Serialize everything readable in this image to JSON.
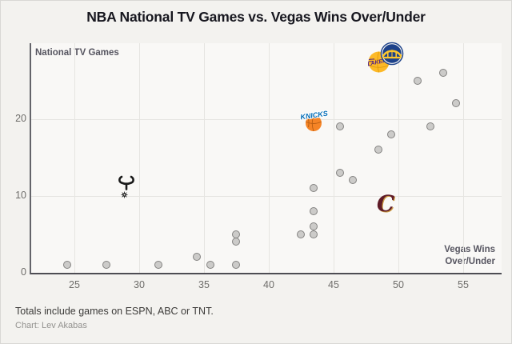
{
  "title": "NBA National TV Games vs. Vegas Wins Over/Under",
  "footer": {
    "note": "Totals include games on ESPN, ABC or TNT.",
    "credit": "Chart: Lev Akabas"
  },
  "chart_data": {
    "type": "scatter",
    "title": "NBA National TV Games vs. Vegas Wins Over/Under",
    "xlabel": "Vegas Wins Over/Under",
    "xlabel_lines": [
      "Vegas Wins",
      "Over/Under"
    ],
    "ylabel": "National TV Games",
    "xlim": [
      21.5,
      58
    ],
    "ylim": [
      0,
      30
    ],
    "xticks": [
      25,
      30,
      35,
      40,
      45,
      50,
      55
    ],
    "yticks": [
      0,
      10,
      20
    ],
    "grid": true,
    "legend": "none",
    "dot_color": "#cccbc9",
    "dot_stroke": "#838280",
    "points": [
      [
        24.5,
        1
      ],
      [
        27.5,
        1
      ],
      [
        31.5,
        1
      ],
      [
        34.5,
        2
      ],
      [
        35.5,
        1
      ],
      [
        37.5,
        1
      ],
      [
        37.5,
        4
      ],
      [
        37.5,
        5
      ],
      [
        42.5,
        5
      ],
      [
        43.5,
        5
      ],
      [
        43.5,
        6
      ],
      [
        43.5,
        8
      ],
      [
        43.5,
        11
      ],
      [
        45.5,
        13
      ],
      [
        45.5,
        19
      ],
      [
        46.5,
        12
      ],
      [
        48.5,
        16
      ],
      [
        49.5,
        18
      ],
      [
        51.5,
        25
      ],
      [
        52.5,
        19
      ],
      [
        53.5,
        26
      ],
      [
        54.5,
        22
      ]
    ],
    "logo_points": [
      {
        "team": "Spurs",
        "x": 29,
        "y": 11,
        "color": "#1a1a1a"
      },
      {
        "team": "Knicks",
        "x": 43.5,
        "y": 20,
        "color": "#006bb6"
      },
      {
        "team": "Cavaliers",
        "x": 49,
        "y": 9,
        "color": "#6e1f31"
      },
      {
        "team": "Lakers",
        "x": 48.5,
        "y": 27.5,
        "color": "#fdb927"
      },
      {
        "team": "Warriors",
        "x": 49.5,
        "y": 28.5,
        "color": "#1d428a"
      }
    ]
  }
}
